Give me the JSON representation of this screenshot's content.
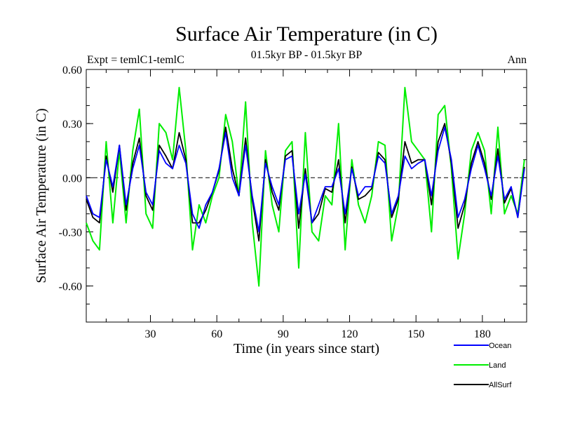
{
  "chart_data": {
    "type": "line",
    "title": "Surface Air Temperature (in C)",
    "subtitle": "01.5kyr BP - 01.5kyr BP",
    "left_label": "Expt = temlC1-temlC",
    "right_label": "Ann",
    "xlabel": "Time (in years since start)",
    "ylabel": "Surface Air Temperature (in C)",
    "xlim": [
      1,
      200
    ],
    "ylim": [
      -0.8,
      0.6
    ],
    "xticks": [
      30,
      60,
      90,
      120,
      150,
      180
    ],
    "yticks": [
      0.6,
      0.3,
      0.0,
      -0.3,
      -0.6
    ],
    "ytick_labels": [
      "0.60",
      "0.30",
      "0.00",
      "-0.30",
      "-0.60"
    ],
    "zero_line": true,
    "legend_position": "bottom-right",
    "x": [
      1,
      4,
      7,
      10,
      13,
      16,
      19,
      22,
      25,
      28,
      31,
      34,
      37,
      40,
      43,
      46,
      49,
      52,
      55,
      58,
      61,
      64,
      67,
      70,
      73,
      76,
      79,
      82,
      85,
      88,
      91,
      94,
      97,
      100,
      103,
      106,
      109,
      112,
      115,
      118,
      121,
      124,
      127,
      130,
      133,
      136,
      139,
      142,
      145,
      148,
      151,
      154,
      157,
      160,
      163,
      166,
      169,
      172,
      175,
      178,
      181,
      184,
      187,
      190,
      193,
      196,
      199
    ],
    "series": [
      {
        "name": "Ocean",
        "color": "#0000ff",
        "values": [
          -0.1,
          -0.2,
          -0.22,
          0.1,
          -0.05,
          0.18,
          -0.15,
          0.05,
          0.18,
          -0.08,
          -0.15,
          0.15,
          0.08,
          0.05,
          0.18,
          0.08,
          -0.2,
          -0.28,
          -0.15,
          -0.08,
          0.05,
          0.25,
          0.0,
          -0.1,
          0.18,
          -0.1,
          -0.3,
          0.08,
          -0.05,
          -0.15,
          0.1,
          0.12,
          -0.2,
          0.02,
          -0.25,
          -0.15,
          -0.05,
          -0.05,
          0.05,
          -0.2,
          0.05,
          -0.1,
          -0.05,
          -0.05,
          0.12,
          0.08,
          -0.2,
          -0.1,
          0.12,
          0.05,
          0.08,
          0.1,
          -0.1,
          0.15,
          0.28,
          0.1,
          -0.22,
          -0.12,
          0.05,
          0.18,
          0.05,
          -0.1,
          0.12,
          -0.12,
          -0.05,
          -0.22,
          0.05
        ]
      },
      {
        "name": "Land",
        "color": "#00ee00",
        "values": [
          -0.25,
          -0.35,
          -0.4,
          0.2,
          -0.25,
          0.15,
          -0.25,
          0.15,
          0.38,
          -0.2,
          -0.28,
          0.3,
          0.25,
          0.1,
          0.5,
          0.15,
          -0.4,
          -0.15,
          -0.25,
          -0.1,
          0.0,
          0.35,
          0.2,
          -0.1,
          0.42,
          -0.25,
          -0.6,
          0.15,
          -0.15,
          -0.3,
          0.15,
          0.2,
          -0.5,
          0.25,
          -0.3,
          -0.35,
          -0.1,
          -0.15,
          0.3,
          -0.4,
          0.1,
          -0.15,
          -0.25,
          -0.1,
          0.2,
          0.18,
          -0.35,
          -0.15,
          0.5,
          0.2,
          0.15,
          0.1,
          -0.3,
          0.35,
          0.4,
          0.05,
          -0.45,
          -0.2,
          0.15,
          0.25,
          0.15,
          -0.2,
          0.28,
          -0.2,
          -0.1,
          -0.2,
          0.1
        ]
      },
      {
        "name": "AllSurf",
        "color": "#000000",
        "values": [
          -0.12,
          -0.22,
          -0.25,
          0.12,
          -0.08,
          0.18,
          -0.18,
          0.08,
          0.22,
          -0.1,
          -0.18,
          0.18,
          0.12,
          0.05,
          0.25,
          0.1,
          -0.25,
          -0.25,
          -0.18,
          -0.08,
          0.04,
          0.28,
          0.05,
          -0.1,
          0.22,
          -0.12,
          -0.35,
          0.1,
          -0.08,
          -0.18,
          0.12,
          0.15,
          -0.28,
          0.05,
          -0.25,
          -0.2,
          -0.06,
          -0.08,
          0.1,
          -0.25,
          0.06,
          -0.12,
          -0.1,
          -0.06,
          0.14,
          0.1,
          -0.22,
          -0.12,
          0.2,
          0.08,
          0.1,
          0.1,
          -0.15,
          0.2,
          0.3,
          0.08,
          -0.28,
          -0.15,
          0.08,
          0.2,
          0.08,
          -0.12,
          0.16,
          -0.14,
          -0.06,
          -0.22,
          0.06
        ]
      }
    ]
  }
}
